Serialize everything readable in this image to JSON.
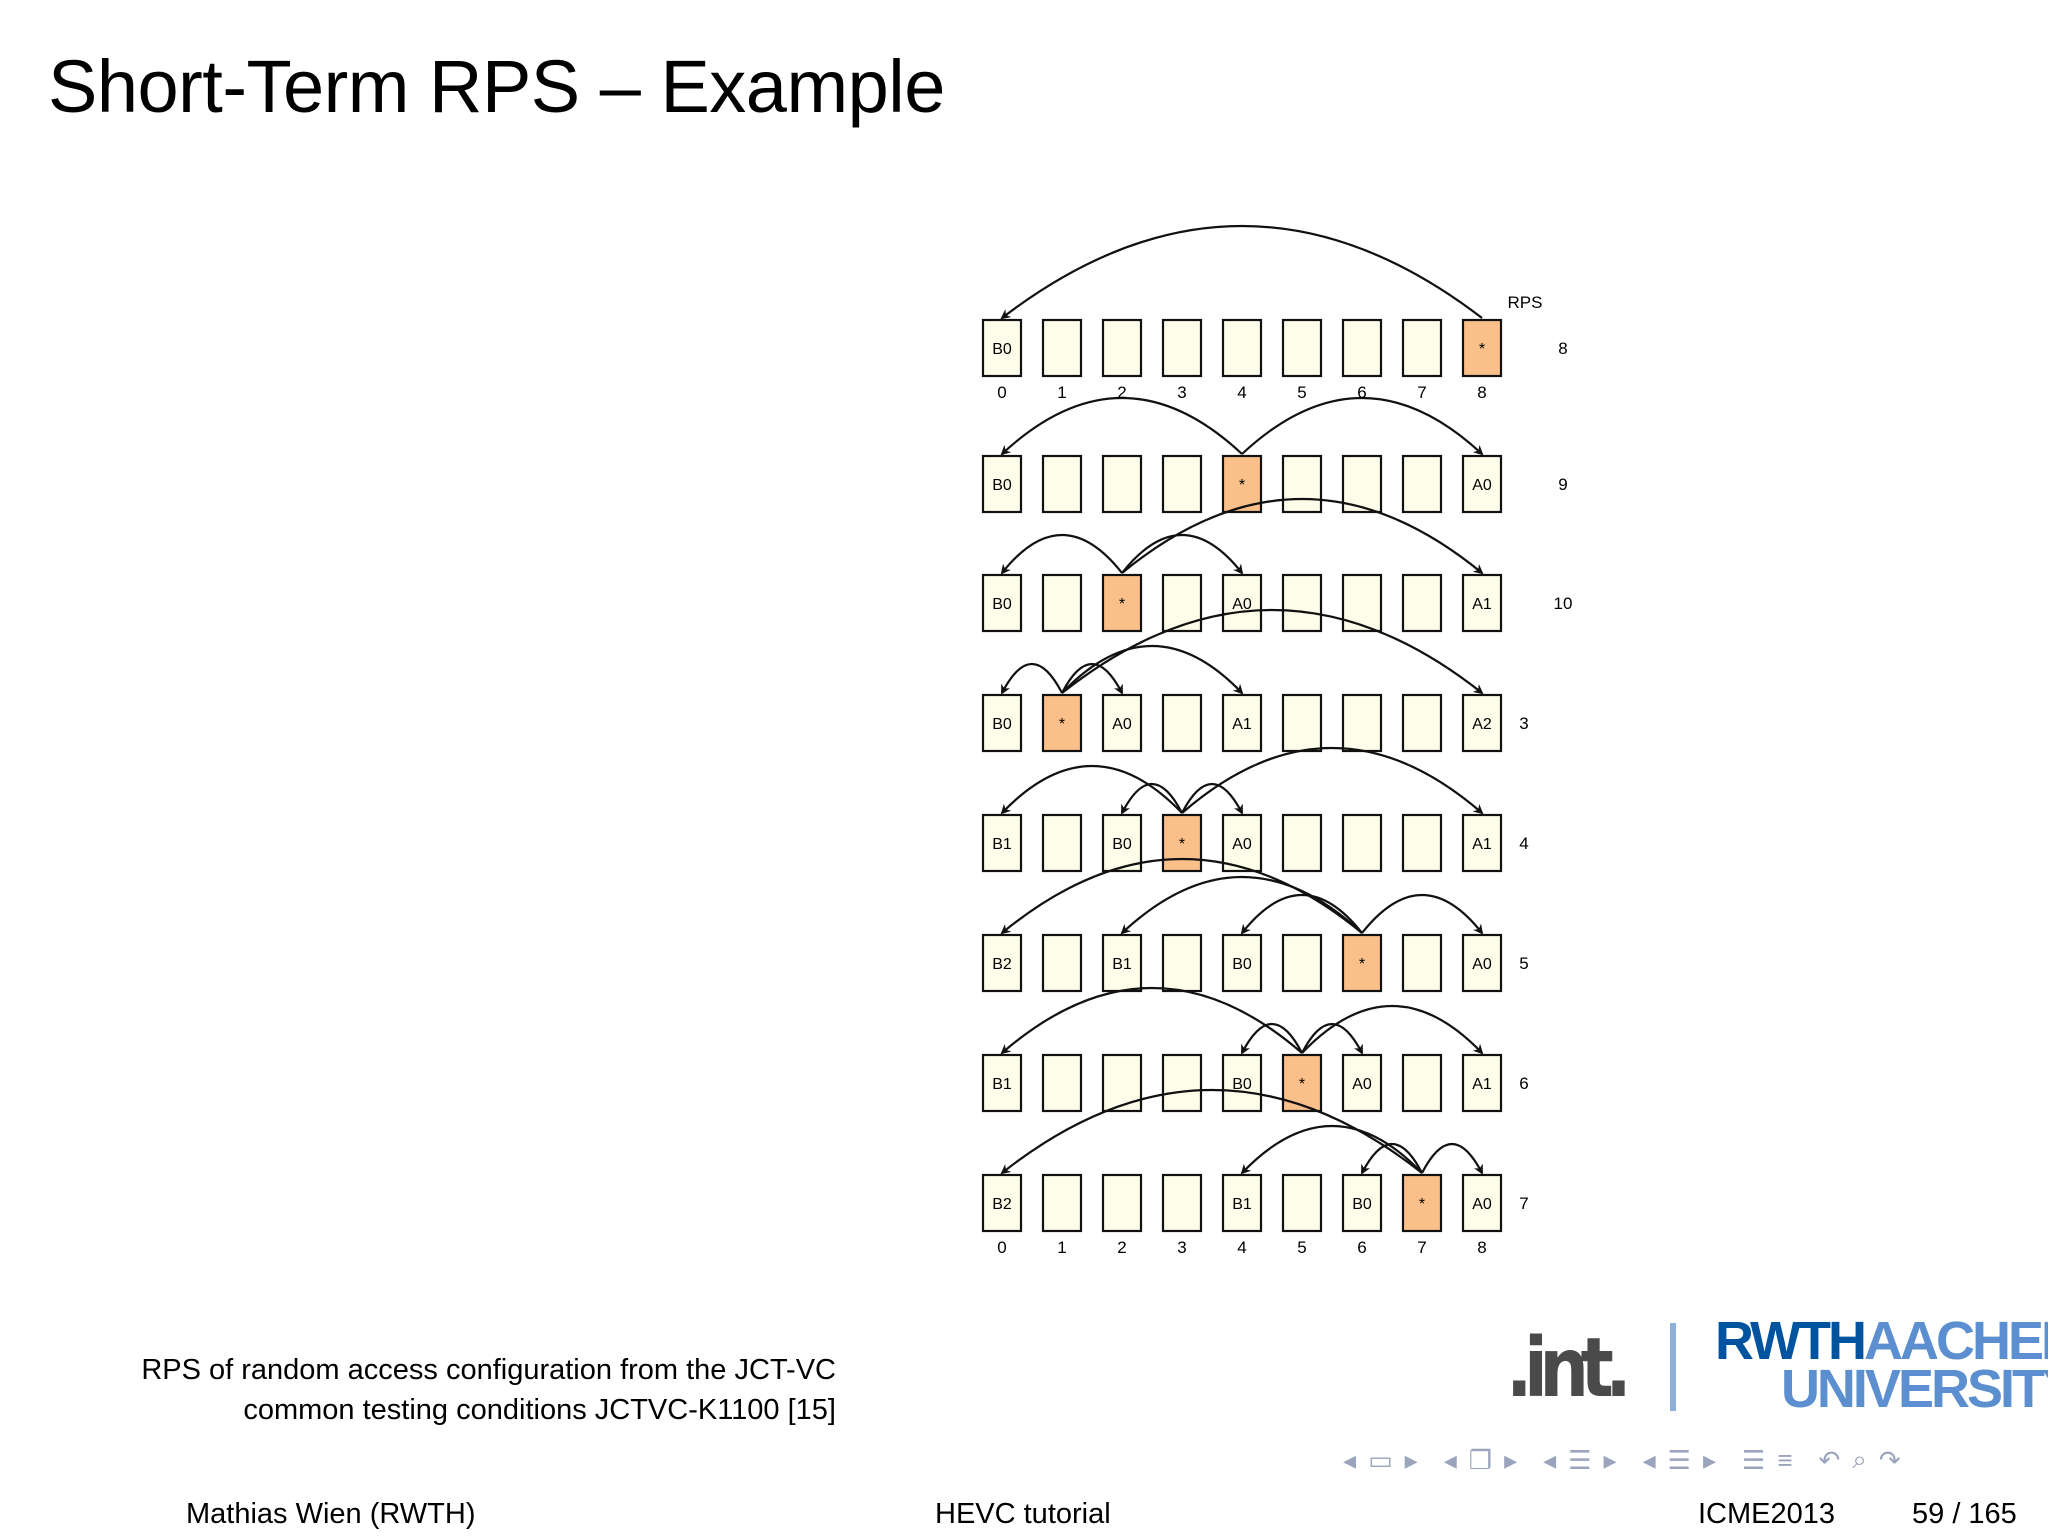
{
  "slide": {
    "title": "Short-Term RPS – Example",
    "caption_line1": "RPS of random access configuration from the JCT-VC",
    "caption_line2": "common testing conditions JCTVC-K1100 [15]"
  },
  "diagram": {
    "rps_header": "RPS",
    "positions": [
      "0",
      "1",
      "2",
      "3",
      "4",
      "5",
      "6",
      "7",
      "8"
    ],
    "colors": {
      "frame_fill": "#fdfdea",
      "current_fill": "#fbbf8a",
      "stroke": "#111111"
    },
    "rows": [
      {
        "rps": "8",
        "current": 8,
        "labels": [
          "B0",
          "",
          "",
          "",
          "",
          "",
          "",
          "",
          "*"
        ],
        "arrows": [
          [
            8,
            0
          ]
        ]
      },
      {
        "rps": "9",
        "current": 4,
        "labels": [
          "B0",
          "",
          "",
          "",
          "*",
          "",
          "",
          "",
          "A0"
        ],
        "arrows": [
          [
            4,
            0
          ],
          [
            4,
            8
          ]
        ]
      },
      {
        "rps": "10",
        "current": 2,
        "labels": [
          "B0",
          "",
          "*",
          "",
          "A0",
          "",
          "",
          "",
          "A1"
        ],
        "arrows": [
          [
            2,
            0
          ],
          [
            2,
            4
          ],
          [
            2,
            8
          ]
        ]
      },
      {
        "rps": "3",
        "current": 1,
        "labels": [
          "B0",
          "*",
          "A0",
          "",
          "A1",
          "",
          "",
          "",
          "A2"
        ],
        "arrows": [
          [
            1,
            0
          ],
          [
            1,
            2
          ],
          [
            1,
            4
          ],
          [
            1,
            8
          ]
        ]
      },
      {
        "rps": "4",
        "current": 3,
        "labels": [
          "B1",
          "",
          "B0",
          "*",
          "A0",
          "",
          "",
          "",
          "A1"
        ],
        "arrows": [
          [
            3,
            0
          ],
          [
            3,
            2
          ],
          [
            3,
            4
          ],
          [
            3,
            8
          ]
        ]
      },
      {
        "rps": "5",
        "current": 6,
        "labels": [
          "B2",
          "",
          "B1",
          "",
          "B0",
          "",
          "*",
          "",
          "A0"
        ],
        "arrows": [
          [
            6,
            0
          ],
          [
            6,
            2
          ],
          [
            6,
            4
          ],
          [
            6,
            8
          ]
        ]
      },
      {
        "rps": "6",
        "current": 5,
        "labels": [
          "B1",
          "",
          "",
          "",
          "B0",
          "*",
          "A0",
          "",
          "A1"
        ],
        "arrows": [
          [
            5,
            0
          ],
          [
            5,
            4
          ],
          [
            5,
            6
          ],
          [
            5,
            8
          ]
        ]
      },
      {
        "rps": "7",
        "current": 7,
        "labels": [
          "B2",
          "",
          "",
          "",
          "B1",
          "",
          "B0",
          "*",
          "A0"
        ],
        "arrows": [
          [
            7,
            0
          ],
          [
            7,
            4
          ],
          [
            7,
            6
          ],
          [
            7,
            8
          ]
        ]
      }
    ]
  },
  "logos": {
    "int": ".int.",
    "rwth": "RWTH",
    "aachen": "AACHEN",
    "university": "UNIVERSITY"
  },
  "nav_icons": [
    "nav-frame-icons",
    "nav-subsection-icons",
    "nav-section-icons",
    "nav-list-icons",
    "nav-undo-icon",
    "nav-search-icon",
    "nav-redo-icon"
  ],
  "footer": {
    "author": "Mathias Wien  (RWTH)",
    "talk": "HEVC tutorial",
    "venue": "ICME2013",
    "page": "59 / 165"
  }
}
